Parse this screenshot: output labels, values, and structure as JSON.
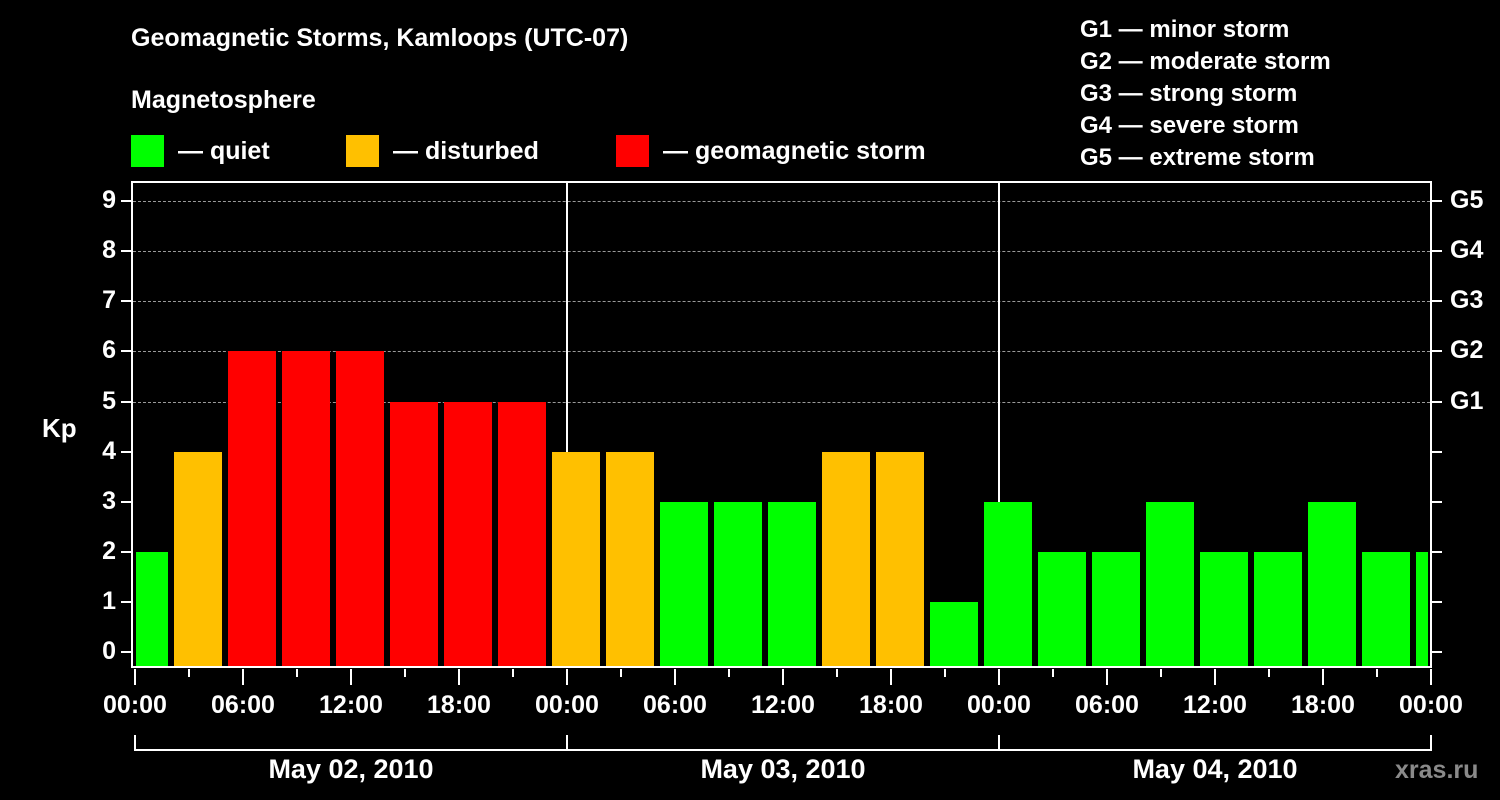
{
  "header": {
    "title": "Geomagnetic Storms, Kamloops (UTC-07)",
    "subtitle": "Magnetosphere"
  },
  "legend": {
    "items": [
      {
        "label": "— quiet",
        "color": "#00ff00"
      },
      {
        "label": "— disturbed",
        "color": "#ffc000"
      },
      {
        "label": "— geomagnetic storm",
        "color": "#ff0000"
      }
    ],
    "g_scale": [
      "G1 — minor storm",
      "G2 — moderate storm",
      "G3 — strong storm",
      "G4 — severe storm",
      "G5 — extreme storm"
    ]
  },
  "axes": {
    "ylabel": "Kp",
    "y_ticks": [
      "0",
      "1",
      "2",
      "3",
      "4",
      "5",
      "6",
      "7",
      "8",
      "9"
    ],
    "g_ticks": [
      {
        "label": "G1",
        "kp": 5
      },
      {
        "label": "G2",
        "kp": 6
      },
      {
        "label": "G3",
        "kp": 7
      },
      {
        "label": "G4",
        "kp": 8
      },
      {
        "label": "G5",
        "kp": 9
      }
    ],
    "x_ticks": [
      "00:00",
      "06:00",
      "12:00",
      "18:00",
      "00:00",
      "06:00",
      "12:00",
      "18:00",
      "00:00",
      "06:00",
      "12:00",
      "18:00",
      "00:00"
    ],
    "dates": [
      "May 02, 2010",
      "May 03, 2010",
      "May 04, 2010"
    ]
  },
  "watermark": "xras.ru",
  "chart_data": {
    "type": "bar",
    "title": "Geomagnetic Storms, Kamloops (UTC-07)",
    "xlabel": "",
    "ylabel": "Kp",
    "ylim": [
      0,
      9
    ],
    "grid": "dashed horizontal at Kp 5-9",
    "legend": [
      "quiet",
      "disturbed",
      "geomagnetic storm"
    ],
    "categories": [
      "May 02 ~00:00",
      "May 02 ~03:00",
      "May 02 ~06:00",
      "May 02 ~09:00",
      "May 02 ~12:00",
      "May 02 ~15:00",
      "May 02 ~18:00",
      "May 02 ~21:00",
      "May 03 ~00:00",
      "May 03 ~03:00",
      "May 03 ~06:00",
      "May 03 ~09:00",
      "May 03 ~12:00",
      "May 03 ~15:00",
      "May 03 ~18:00",
      "May 03 ~21:00",
      "May 04 ~00:00",
      "May 04 ~03:00",
      "May 04 ~06:00",
      "May 04 ~09:00",
      "May 04 ~12:00",
      "May 04 ~15:00",
      "May 04 ~18:00",
      "May 04 ~21:00",
      "May 05 ~00:00 (partial)"
    ],
    "values": [
      2,
      4,
      6,
      6,
      6,
      5,
      5,
      5,
      4,
      4,
      3,
      3,
      3,
      4,
      4,
      1,
      3,
      2,
      2,
      3,
      2,
      2,
      3,
      2,
      2
    ],
    "status": [
      "quiet",
      "disturbed",
      "storm",
      "storm",
      "storm",
      "storm",
      "storm",
      "storm",
      "disturbed",
      "disturbed",
      "quiet",
      "quiet",
      "quiet",
      "disturbed",
      "disturbed",
      "quiet",
      "quiet",
      "quiet",
      "quiet",
      "quiet",
      "quiet",
      "quiet",
      "quiet",
      "quiet",
      "quiet"
    ],
    "colors": {
      "quiet": "#00ff00",
      "disturbed": "#ffc000",
      "storm": "#ff0000"
    }
  }
}
